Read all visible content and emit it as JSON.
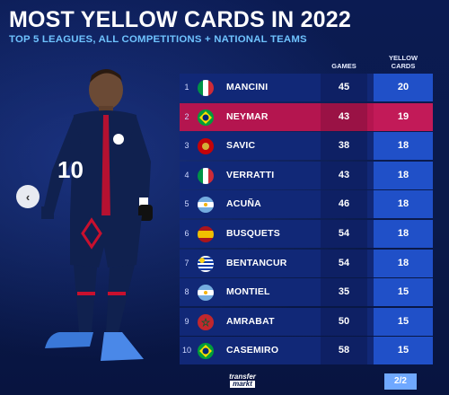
{
  "header": {
    "title": "MOST YELLOW CARDS IN 2022",
    "subtitle": "TOP 5 LEAGUES, ALL COMPETITIONS + NATIONAL TEAMS"
  },
  "columns": {
    "games": "GAMES",
    "yellow_line1": "YELLOW",
    "yellow_line2": "CARDS"
  },
  "rows": [
    {
      "rank": "1",
      "name": "MANCINI",
      "games": "45",
      "cards": "20",
      "flag": "italy"
    },
    {
      "rank": "2",
      "name": "NEYMAR",
      "games": "43",
      "cards": "19",
      "flag": "brazil"
    },
    {
      "rank": "3",
      "name": "SAVIC",
      "games": "38",
      "cards": "18",
      "flag": "montenegro"
    },
    {
      "rank": "4",
      "name": "VERRATTI",
      "games": "43",
      "cards": "18",
      "flag": "italy"
    },
    {
      "rank": "5",
      "name": "ACUÑA",
      "games": "46",
      "cards": "18",
      "flag": "argentina"
    },
    {
      "rank": "6",
      "name": "BUSQUETS",
      "games": "54",
      "cards": "18",
      "flag": "spain"
    },
    {
      "rank": "7",
      "name": "BENTANCUR",
      "games": "54",
      "cards": "18",
      "flag": "uruguay"
    },
    {
      "rank": "8",
      "name": "MONTIEL",
      "games": "35",
      "cards": "15",
      "flag": "argentina"
    },
    {
      "rank": "9",
      "name": "AMRABAT",
      "games": "50",
      "cards": "15",
      "flag": "morocco"
    },
    {
      "rank": "10",
      "name": "CASEMIRO",
      "games": "58",
      "cards": "15",
      "flag": "brazil"
    }
  ],
  "player": {
    "shirt_number": "10"
  },
  "footer": {
    "logo_line1": "transfer",
    "logo_line2": "markt",
    "page": "2/2"
  },
  "navigation": {
    "prev_icon": "chevron-left-icon"
  },
  "colors": {
    "background": "#0a1a4a",
    "row": "#112877",
    "highlight": "#b4154f",
    "cards_column": "#2050c8",
    "subtitle": "#6fc3ff"
  }
}
